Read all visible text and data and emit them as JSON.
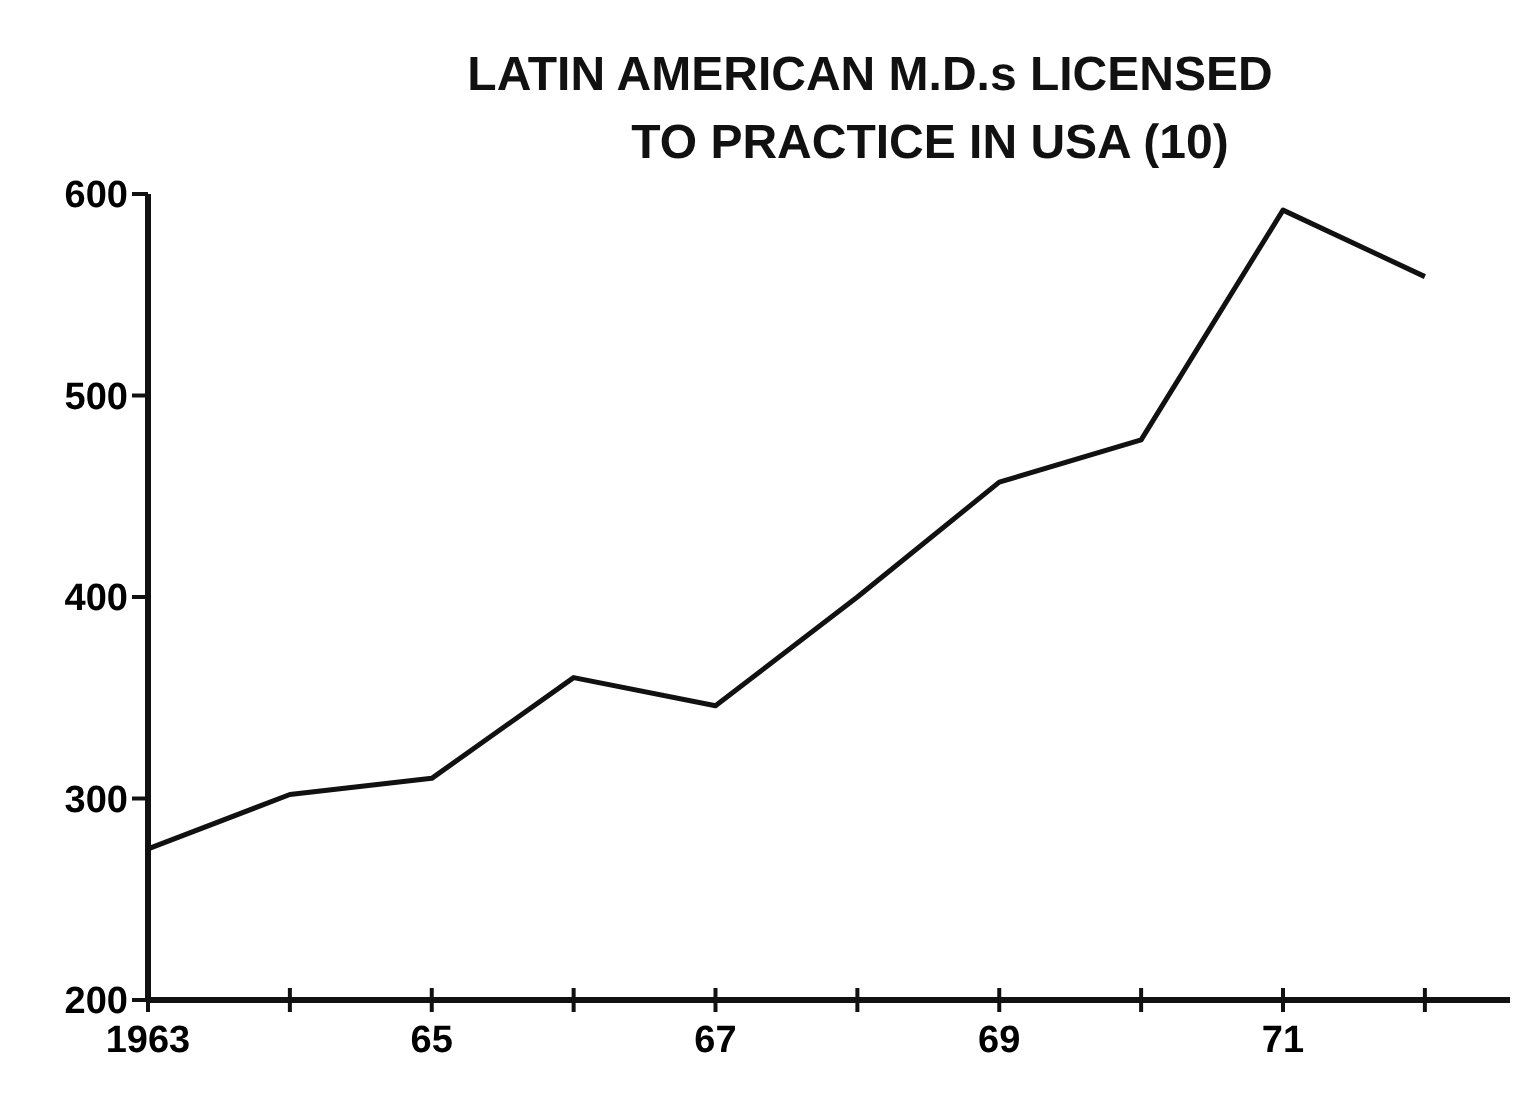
{
  "chart_data": {
    "type": "line",
    "title": "LATIN AMERICAN M.D.s LICENSED\nTO PRACTICE IN USA (10)",
    "x": [
      1963,
      1964,
      1965,
      1966,
      1967,
      1968,
      1969,
      1970,
      1971,
      1972
    ],
    "series": [
      {
        "color": "#111111",
        "values": [
          275,
          302,
          310,
          360,
          346,
          400,
          457,
          478,
          592,
          559
        ]
      }
    ],
    "xlim": [
      1963,
      1972.6
    ],
    "xticks": [
      {
        "value": 1963,
        "label": "1963"
      },
      {
        "value": 1964,
        "label": null
      },
      {
        "value": 1965,
        "label": "65"
      },
      {
        "value": 1966,
        "label": null
      },
      {
        "value": 1967,
        "label": "67"
      },
      {
        "value": 1968,
        "label": null
      },
      {
        "value": 1969,
        "label": "69"
      },
      {
        "value": 1970,
        "label": null
      },
      {
        "value": 1971,
        "label": "71"
      },
      {
        "value": 1972,
        "label": null
      }
    ],
    "ylim": [
      200,
      600
    ],
    "yticks": [
      200,
      300,
      400,
      500,
      600
    ],
    "grid": false,
    "marker": "none",
    "line_style": "solid"
  }
}
